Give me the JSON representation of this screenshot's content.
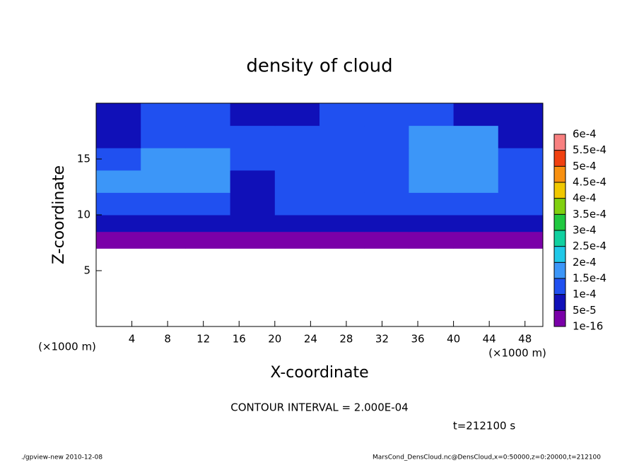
{
  "chart_data": {
    "type": "heatmap",
    "title": "density of cloud",
    "xlabel": "X-coordinate",
    "ylabel": "Z-coordinate",
    "unit_label": "(×1000 m)",
    "contour_interval": "CONTOUR INTERVAL = 2.000E-04",
    "time_label": "t=212100 s",
    "footer_left": "./gpview-new  2010-12-08",
    "footer_right": "MarsCond_DensCloud.nc@DensCloud,x=0:50000,z=0:20000,t=212100",
    "xlim": [
      0,
      50
    ],
    "ylim": [
      0,
      20
    ],
    "xticks": [
      4,
      8,
      12,
      16,
      20,
      24,
      28,
      32,
      36,
      40,
      44,
      48
    ],
    "yticks": [
      5,
      10,
      15
    ],
    "x_edges": [
      0,
      5,
      10,
      15,
      20,
      25,
      30,
      35,
      40,
      45,
      50
    ],
    "z_edges": [
      7,
      8.5,
      10,
      12,
      14,
      16,
      18,
      20
    ],
    "values": [
      [
        3e-05,
        3e-05,
        3e-05,
        3e-05,
        3e-05,
        3e-05,
        3e-05,
        3e-05,
        3e-05,
        3e-05
      ],
      [
        7e-05,
        7e-05,
        7e-05,
        7e-05,
        7e-05,
        7e-05,
        7e-05,
        7e-05,
        7e-05,
        7e-05
      ],
      [
        0.00011,
        0.00011,
        0.00011,
        8e-05,
        0.00011,
        0.00011,
        0.00011,
        0.00011,
        0.00011,
        0.00011
      ],
      [
        0.00016,
        0.00017,
        0.00015,
        9e-05,
        0.00012,
        0.00013,
        0.00013,
        0.00016,
        0.00016,
        0.00012
      ],
      [
        0.00012,
        0.00016,
        0.00017,
        0.00013,
        0.00012,
        0.00013,
        0.00014,
        0.00017,
        0.00018,
        0.00011
      ],
      [
        7e-05,
        0.00012,
        0.00013,
        0.00014,
        0.00013,
        0.00013,
        0.00012,
        0.00017,
        0.00016,
        8e-05
      ],
      [
        8e-05,
        0.00011,
        0.00011,
        9e-05,
        9e-05,
        0.0001,
        0.0001,
        0.00011,
        9e-05,
        6e-05
      ]
    ],
    "colorbar": {
      "levels": [
        1e-16,
        {
          "value": 5e-05,
          "label": "5e-5"
        },
        {
          "value": 0.0001,
          "label": "1e-4"
        },
        {
          "value": 0.00015,
          "label": "1.5e-4"
        },
        {
          "value": 0.0002,
          "label": "2e-4"
        },
        {
          "value": 0.00025,
          "label": "2.5e-4"
        },
        {
          "value": 0.0003,
          "label": "3e-4"
        },
        {
          "value": 0.00035,
          "label": "3.5e-4"
        },
        {
          "value": 0.0004,
          "label": "4e-4"
        },
        {
          "value": 0.00045,
          "label": "4.5e-4"
        },
        {
          "value": 0.0005,
          "label": "5e-4"
        },
        {
          "value": 0.00055,
          "label": "5.5e-4"
        },
        {
          "value": 0.0006,
          "label": "6e-4"
        }
      ],
      "colors": [
        "#7a00a8",
        "#1010b8",
        "#2050f0",
        "#3c96f8",
        "#20c8e8",
        "#10d0a0",
        "#20c840",
        "#80d010",
        "#f0c800",
        "#f89010",
        "#f04010",
        "#f88080"
      ]
    }
  }
}
